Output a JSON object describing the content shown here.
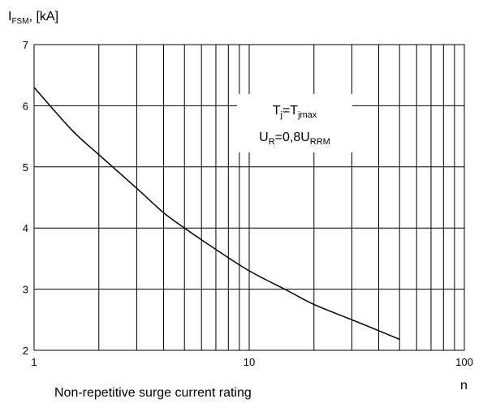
{
  "chart_data": {
    "type": "line",
    "x_scale": "log",
    "y_scale": "linear",
    "xlim": [
      1,
      100
    ],
    "ylim": [
      2,
      7
    ],
    "grid": true,
    "ylabel": {
      "main": "I",
      "sub": "FSM",
      "rest": ", [kA]"
    },
    "xlabel": "n",
    "x_ticks": [
      1,
      10,
      100
    ],
    "y_ticks": [
      2,
      3,
      4,
      5,
      6,
      7
    ],
    "series": [
      {
        "x": [
          1,
          1.5,
          2,
          3,
          4,
          5,
          7,
          10,
          15,
          20,
          30,
          50
        ],
        "y": [
          6.3,
          5.6,
          5.2,
          4.65,
          4.25,
          4.0,
          3.65,
          3.3,
          2.98,
          2.75,
          2.5,
          2.18
        ]
      }
    ],
    "annotation": [
      [
        {
          "t": "T"
        },
        {
          "t": "j",
          "sub": true
        },
        {
          "t": "=T"
        },
        {
          "t": "jmax",
          "sub": true
        }
      ],
      [
        {
          "t": "U"
        },
        {
          "t": "R",
          "sub": true
        },
        {
          "t": "=0,8U"
        },
        {
          "t": "RRM",
          "sub": true
        }
      ]
    ]
  },
  "caption": "Non-repetitive surge current rating"
}
